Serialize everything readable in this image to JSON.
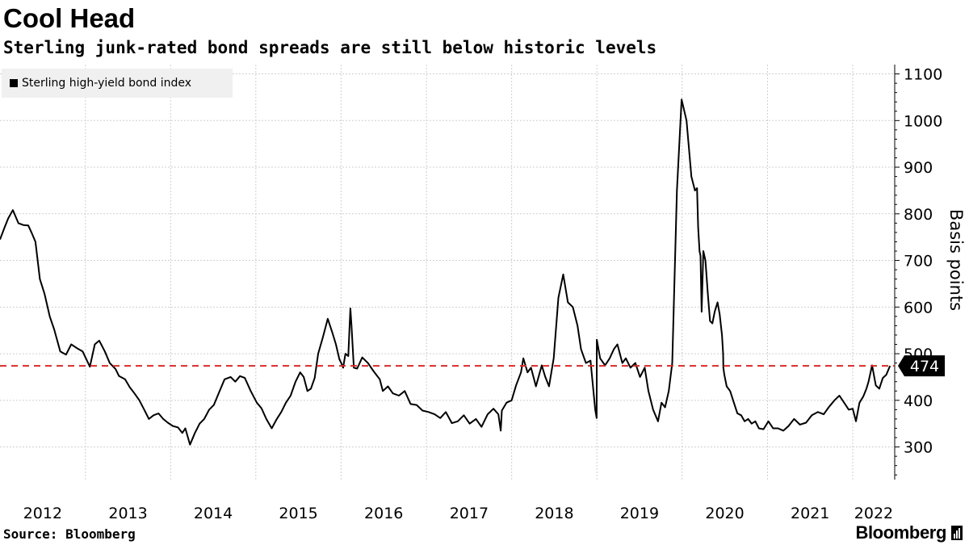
{
  "header": {
    "title": "Cool Head",
    "subtitle": "Sterling junk-rated bond spreads are still below historic levels"
  },
  "footer": {
    "source": "Source: Bloomberg",
    "brand": "Bloomberg"
  },
  "colors": {
    "series": "#000000",
    "reference": "#d92b2b",
    "grid": "#cfcfcf",
    "legend_background": "#f0f0f0",
    "value_tag": "#000000"
  },
  "icons": {
    "brand_mark": "terminal-bars-icon"
  },
  "chart_data": {
    "type": "line",
    "title": "Cool Head",
    "subtitle": "Sterling junk-rated bond spreads are still below historic levels",
    "ylabel": "Basis points",
    "ylim": [
      230,
      1120
    ],
    "xlim": [
      "2012-01-01",
      "2022-06-30"
    ],
    "y_ticks": [
      300,
      400,
      500,
      600,
      700,
      800,
      900,
      1000,
      1100
    ],
    "x_ticks": [
      "2012",
      "2013",
      "2014",
      "2015",
      "2016",
      "2017",
      "2018",
      "2019",
      "2020",
      "2021",
      "2022"
    ],
    "grid": true,
    "y_axis_position": "right",
    "legend_position": "top-left",
    "legend": [
      "Sterling high-yield bond index"
    ],
    "reference_line": {
      "value": 474,
      "label": "474",
      "style": "dashed"
    },
    "series": [
      {
        "name": "Sterling high-yield bond index",
        "x": [
          "2012-01-01",
          "2012-01-20",
          "2012-02-05",
          "2012-02-25",
          "2012-03-20",
          "2012-04-10",
          "2012-05-01",
          "2012-05-15",
          "2012-06-01",
          "2012-06-20",
          "2012-07-10",
          "2012-08-01",
          "2012-08-20",
          "2012-09-15",
          "2012-10-10",
          "2012-11-01",
          "2012-11-25",
          "2012-12-20",
          "2013-01-20",
          "2013-02-10",
          "2013-03-01",
          "2013-03-25",
          "2013-04-15",
          "2013-05-10",
          "2013-05-25",
          "2013-06-20",
          "2013-07-10",
          "2013-07-30",
          "2013-08-20",
          "2013-09-10",
          "2013-09-30",
          "2013-10-20",
          "2013-11-10",
          "2013-11-30",
          "2013-12-20",
          "2014-01-10",
          "2014-02-01",
          "2014-02-20",
          "2014-03-05",
          "2014-03-25",
          "2014-04-15",
          "2014-05-05",
          "2014-05-25",
          "2014-06-15",
          "2014-07-05",
          "2014-07-30",
          "2014-08-20",
          "2014-09-15",
          "2014-10-05",
          "2014-10-25",
          "2014-11-15",
          "2014-12-10",
          "2015-01-05",
          "2015-01-25",
          "2015-02-15",
          "2015-03-10",
          "2015-04-01",
          "2015-04-20",
          "2015-05-10",
          "2015-05-30",
          "2015-06-20",
          "2015-07-10",
          "2015-07-25",
          "2015-08-10",
          "2015-08-25",
          "2015-09-10",
          "2015-09-25",
          "2015-10-15",
          "2015-11-05",
          "2015-11-25",
          "2015-12-10",
          "2015-12-25",
          "2016-01-02",
          "2016-01-10",
          "2016-01-20",
          "2016-02-01",
          "2016-02-10",
          "2016-02-15",
          "2016-02-25",
          "2016-03-10",
          "2016-04-01",
          "2016-04-25",
          "2016-05-20",
          "2016-06-15",
          "2016-06-28",
          "2016-07-20",
          "2016-08-10",
          "2016-09-05",
          "2016-09-30",
          "2016-10-25",
          "2016-11-20",
          "2016-12-15",
          "2017-01-10",
          "2017-02-05",
          "2017-03-01",
          "2017-03-25",
          "2017-04-20",
          "2017-05-15",
          "2017-06-10",
          "2017-07-05",
          "2017-08-01",
          "2017-08-25",
          "2017-09-20",
          "2017-10-15",
          "2017-11-05",
          "2017-11-15",
          "2017-11-20",
          "2017-12-10",
          "2018-01-01",
          "2018-01-20",
          "2018-02-10",
          "2018-02-20",
          "2018-03-10",
          "2018-03-25",
          "2018-04-15",
          "2018-05-10",
          "2018-05-25",
          "2018-06-10",
          "2018-06-30",
          "2018-07-20",
          "2018-08-10",
          "2018-08-30",
          "2018-09-20",
          "2018-10-10",
          "2018-10-25",
          "2018-11-15",
          "2018-12-05",
          "2018-12-25",
          "2018-12-31",
          "2019-01-01",
          "2019-01-15",
          "2019-02-05",
          "2019-02-25",
          "2019-03-15",
          "2019-03-30",
          "2019-04-20",
          "2019-05-05",
          "2019-05-25",
          "2019-06-15",
          "2019-07-05",
          "2019-07-25",
          "2019-08-10",
          "2019-08-30",
          "2019-09-20",
          "2019-10-05",
          "2019-10-20",
          "2019-11-05",
          "2019-11-20",
          "2019-12-10",
          "2019-12-30",
          "2020-01-20",
          "2020-02-10",
          "2020-02-25",
          "2020-03-05",
          "2020-03-10",
          "2020-03-16",
          "2020-03-20",
          "2020-03-25",
          "2020-04-01",
          "2020-04-10",
          "2020-04-20",
          "2020-04-30",
          "2020-05-10",
          "2020-05-20",
          "2020-06-01",
          "2020-06-10",
          "2020-06-20",
          "2020-06-25",
          "2020-06-26",
          "2020-06-30",
          "2020-07-10",
          "2020-07-25",
          "2020-08-10",
          "2020-08-25",
          "2020-09-10",
          "2020-09-25",
          "2020-10-10",
          "2020-10-25",
          "2020-11-10",
          "2020-11-25",
          "2020-12-15",
          "2021-01-05",
          "2021-01-25",
          "2021-02-15",
          "2021-03-10",
          "2021-04-01",
          "2021-04-25",
          "2021-05-20",
          "2021-06-15",
          "2021-07-10",
          "2021-08-05",
          "2021-08-30",
          "2021-09-20",
          "2021-10-15",
          "2021-11-05",
          "2021-11-25",
          "2021-12-15",
          "2022-01-01",
          "2022-01-15",
          "2022-01-30",
          "2022-02-15",
          "2022-03-01",
          "2022-03-10",
          "2022-03-25",
          "2022-04-10",
          "2022-04-25",
          "2022-05-10",
          "2022-05-25",
          "2022-06-10"
        ],
        "values": [
          745,
          770,
          790,
          808,
          780,
          776,
          775,
          760,
          740,
          660,
          628,
          580,
          552,
          505,
          498,
          520,
          512,
          505,
          472,
          520,
          528,
          505,
          480,
          467,
          452,
          445,
          428,
          415,
          400,
          380,
          360,
          368,
          372,
          360,
          352,
          345,
          342,
          330,
          340,
          305,
          330,
          350,
          360,
          380,
          390,
          420,
          445,
          450,
          440,
          452,
          448,
          420,
          395,
          383,
          360,
          340,
          360,
          375,
          395,
          410,
          440,
          460,
          450,
          420,
          425,
          448,
          500,
          535,
          575,
          545,
          520,
          488,
          480,
          470,
          500,
          495,
          597,
          560,
          470,
          468,
          492,
          480,
          462,
          445,
          420,
          430,
          415,
          410,
          420,
          392,
          390,
          378,
          375,
          370,
          362,
          375,
          351,
          355,
          368,
          350,
          360,
          343,
          370,
          382,
          370,
          335,
          378,
          395,
          400,
          432,
          460,
          490,
          460,
          470,
          430,
          475,
          450,
          430,
          490,
          620,
          670,
          610,
          600,
          560,
          510,
          480,
          485,
          380,
          362,
          530,
          490,
          475,
          490,
          510,
          520,
          480,
          490,
          470,
          480,
          450,
          470,
          420,
          380,
          355,
          395,
          385,
          420,
          480,
          850,
          1045,
          1000,
          880,
          850,
          855,
          770,
          720,
          710,
          590,
          720,
          700,
          630,
          570,
          565,
          590,
          610,
          585,
          540,
          500,
          470,
          455,
          430,
          420,
          395,
          372,
          368,
          355,
          360,
          350,
          355,
          340,
          338,
          355,
          340,
          340,
          335,
          345,
          360,
          348,
          352,
          368,
          375,
          370,
          385,
          400,
          410,
          395,
          380,
          382,
          355,
          395,
          408,
          425,
          440,
          475,
          432,
          425,
          448,
          455,
          474
        ]
      }
    ]
  }
}
